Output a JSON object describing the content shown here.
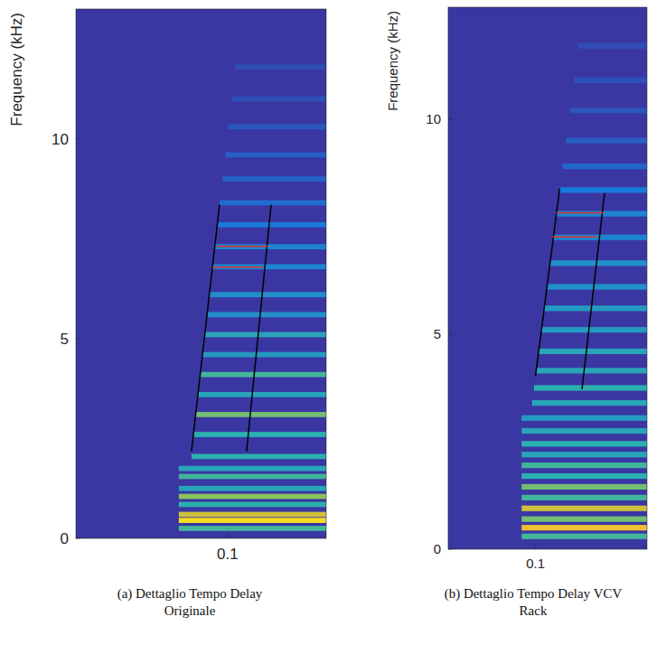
{
  "chart_data": [
    {
      "type": "heatmap",
      "ylabel": "Frequency (kHz)",
      "caption": "(a) Dettaglio Tempo Delay Originale",
      "xlim": [
        0.04,
        0.139
      ],
      "xticks": [
        0.1
      ],
      "ylim": [
        0,
        13.25
      ],
      "yticks": [
        0,
        5,
        10
      ],
      "clim": [
        0,
        1
      ],
      "bands": [
        {
          "f": 0.25,
          "start": 0.0807,
          "level": 0.6
        },
        {
          "f": 0.45,
          "start": 0.0807,
          "level": 0.95
        },
        {
          "f": 0.6,
          "start": 0.0807,
          "level": 0.85
        },
        {
          "f": 0.85,
          "start": 0.0807,
          "level": 0.55
        },
        {
          "f": 1.05,
          "start": 0.0807,
          "level": 0.75
        },
        {
          "f": 1.25,
          "start": 0.0807,
          "level": 0.5
        },
        {
          "f": 1.55,
          "start": 0.0807,
          "level": 0.6
        },
        {
          "f": 1.75,
          "start": 0.0807,
          "level": 0.5
        },
        {
          "f": 2.05,
          "start": 0.0857,
          "level": 0.55
        },
        {
          "f": 2.6,
          "start": 0.0865,
          "level": 0.55
        },
        {
          "f": 3.1,
          "start": 0.0874,
          "level": 0.7
        },
        {
          "f": 3.6,
          "start": 0.0883,
          "level": 0.5
        },
        {
          "f": 4.1,
          "start": 0.0892,
          "level": 0.6
        },
        {
          "f": 4.6,
          "start": 0.0901,
          "level": 0.45
        },
        {
          "f": 5.1,
          "start": 0.091,
          "level": 0.5
        },
        {
          "f": 5.6,
          "start": 0.0919,
          "level": 0.4
        },
        {
          "f": 6.1,
          "start": 0.0928,
          "level": 0.4
        },
        {
          "f": 6.8,
          "start": 0.094,
          "level": 0.35
        },
        {
          "f": 7.3,
          "start": 0.0949,
          "level": 0.35
        },
        {
          "f": 7.85,
          "start": 0.0959,
          "level": 0.3
        },
        {
          "f": 8.4,
          "start": 0.0969,
          "level": 0.25
        },
        {
          "f": 9.0,
          "start": 0.098,
          "level": 0.2
        },
        {
          "f": 9.6,
          "start": 0.0991,
          "level": 0.18
        },
        {
          "f": 10.3,
          "start": 0.1003,
          "level": 0.15
        },
        {
          "f": 11.0,
          "start": 0.1016,
          "level": 0.12
        },
        {
          "f": 11.8,
          "start": 0.103,
          "level": 0.1
        }
      ],
      "lines": [
        {
          "color": "#000000",
          "x": [
            0.0857,
            0.0968
          ],
          "y": [
            2.17,
            8.35
          ]
        },
        {
          "color": "#000000",
          "x": [
            0.1075,
            0.1172
          ],
          "y": [
            2.17,
            8.35
          ]
        },
        {
          "color": "#e03030",
          "x": [
            0.0958,
            0.1162
          ],
          "y": [
            7.31,
            7.31
          ]
        },
        {
          "color": "#e03030",
          "x": [
            0.094,
            0.114
          ],
          "y": [
            6.79,
            6.79
          ]
        }
      ]
    },
    {
      "type": "heatmap",
      "ylabel": "Frequency (kHz)",
      "caption": "(b) Dettaglio Tempo Delay VCV Rack",
      "xlim": [
        0.064,
        0.146
      ],
      "xticks": [
        0.1
      ],
      "ylim": [
        0,
        12.6
      ],
      "yticks": [
        0,
        5,
        10
      ],
      "clim": [
        0,
        1
      ],
      "bands": [
        {
          "f": 0.3,
          "start": 0.0943,
          "level": 0.6
        },
        {
          "f": 0.5,
          "start": 0.0943,
          "level": 0.9
        },
        {
          "f": 0.7,
          "start": 0.0943,
          "level": 0.7
        },
        {
          "f": 0.95,
          "start": 0.0943,
          "level": 0.85
        },
        {
          "f": 1.2,
          "start": 0.0943,
          "level": 0.6
        },
        {
          "f": 1.45,
          "start": 0.0943,
          "level": 0.7
        },
        {
          "f": 1.7,
          "start": 0.0943,
          "level": 0.55
        },
        {
          "f": 1.95,
          "start": 0.0943,
          "level": 0.6
        },
        {
          "f": 2.2,
          "start": 0.0943,
          "level": 0.5
        },
        {
          "f": 2.45,
          "start": 0.0943,
          "level": 0.55
        },
        {
          "f": 2.75,
          "start": 0.0943,
          "level": 0.5
        },
        {
          "f": 3.05,
          "start": 0.0943,
          "level": 0.45
        },
        {
          "f": 3.4,
          "start": 0.0986,
          "level": 0.5
        },
        {
          "f": 3.75,
          "start": 0.0994,
          "level": 0.55
        },
        {
          "f": 4.15,
          "start": 0.1003,
          "level": 0.5
        },
        {
          "f": 4.6,
          "start": 0.1013,
          "level": 0.5
        },
        {
          "f": 5.1,
          "start": 0.1025,
          "level": 0.45
        },
        {
          "f": 5.6,
          "start": 0.1036,
          "level": 0.45
        },
        {
          "f": 6.1,
          "start": 0.1048,
          "level": 0.4
        },
        {
          "f": 6.65,
          "start": 0.106,
          "level": 0.4
        },
        {
          "f": 7.25,
          "start": 0.1074,
          "level": 0.35
        },
        {
          "f": 7.8,
          "start": 0.1087,
          "level": 0.35
        },
        {
          "f": 8.35,
          "start": 0.1099,
          "level": 0.3
        },
        {
          "f": 8.9,
          "start": 0.1112,
          "level": 0.22
        },
        {
          "f": 9.5,
          "start": 0.1126,
          "level": 0.18
        },
        {
          "f": 10.2,
          "start": 0.1142,
          "level": 0.14
        },
        {
          "f": 10.9,
          "start": 0.1158,
          "level": 0.12
        },
        {
          "f": 11.7,
          "start": 0.1176,
          "level": 0.1
        }
      ],
      "lines": [
        {
          "color": "#000000",
          "x": [
            0.1,
            0.11
          ],
          "y": [
            4.02,
            8.39
          ]
        },
        {
          "color": "#000000",
          "x": [
            0.1192,
            0.1285
          ],
          "y": [
            3.72,
            8.28
          ]
        },
        {
          "color": "#e03030",
          "x": [
            0.1086,
            0.1285
          ],
          "y": [
            7.82,
            7.82
          ]
        },
        {
          "color": "#e03030",
          "x": [
            0.1071,
            0.1253
          ],
          "y": [
            7.26,
            7.26
          ]
        }
      ]
    }
  ]
}
